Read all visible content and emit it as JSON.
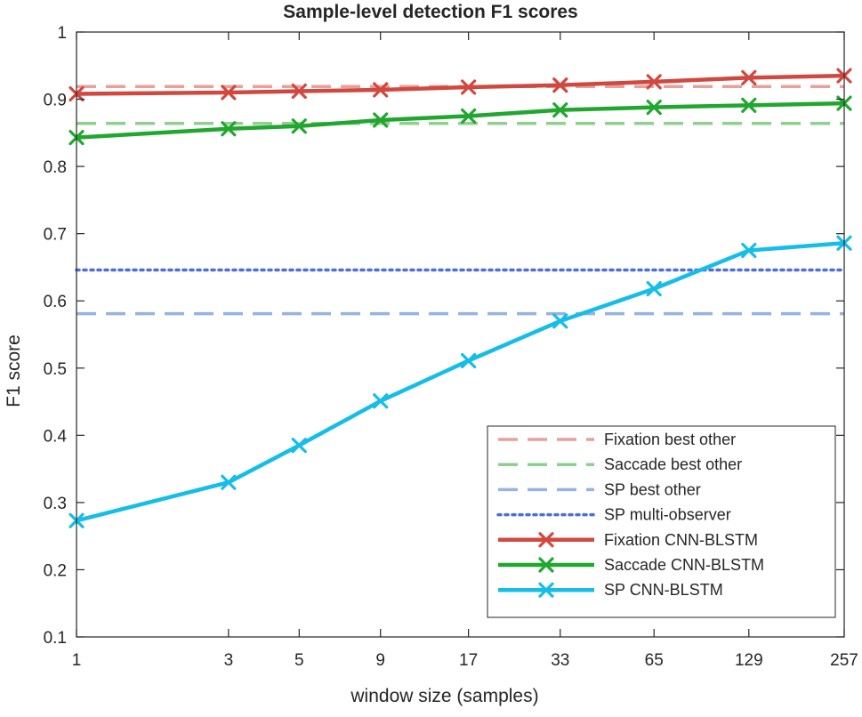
{
  "chart_data": {
    "type": "line",
    "title": "Sample-level detection F1 scores",
    "xlabel": "window size (samples)",
    "ylabel": "F1 score",
    "x_scale": "log2",
    "x_ticks": [
      1,
      3,
      5,
      9,
      17,
      33,
      65,
      129,
      257
    ],
    "x": [
      1,
      3,
      5,
      9,
      17,
      33,
      65,
      129,
      257
    ],
    "xlim": [
      1,
      257
    ],
    "ylim": [
      0.1,
      1
    ],
    "y_ticks": [
      0.1,
      0.2,
      0.3,
      0.4,
      0.5,
      0.6,
      0.7,
      0.8,
      0.9,
      1
    ],
    "y_tick_labels": [
      "0.1",
      "0.2",
      "0.3",
      "0.4",
      "0.5",
      "0.6",
      "0.7",
      "0.8",
      "0.9",
      "1"
    ],
    "grid": false,
    "legend_position": "bottom-right",
    "reference_lines": [
      {
        "name": "Fixation best other",
        "value": 0.919,
        "style": "dashed",
        "color": "#e8a09a"
      },
      {
        "name": "Saccade best other",
        "value": 0.864,
        "style": "dashed",
        "color": "#8fd08f"
      },
      {
        "name": "SP best other",
        "value": 0.581,
        "style": "dashed",
        "color": "#96b3e2"
      },
      {
        "name": "SP multi-observer",
        "value": 0.646,
        "style": "dotted",
        "color": "#4f6fd6"
      }
    ],
    "series": [
      {
        "name": "Fixation CNN-BLSTM",
        "color": "#d1483f",
        "marker": "x",
        "values": [
          0.908,
          0.91,
          0.912,
          0.914,
          0.918,
          0.921,
          0.926,
          0.932,
          0.935
        ]
      },
      {
        "name": "Saccade CNN-BLSTM",
        "color": "#21a72f",
        "marker": "x",
        "values": [
          0.843,
          0.856,
          0.86,
          0.869,
          0.875,
          0.884,
          0.888,
          0.891,
          0.894
        ]
      },
      {
        "name": "SP CNN-BLSTM",
        "color": "#15bde8",
        "marker": "x",
        "values": [
          0.273,
          0.33,
          0.385,
          0.451,
          0.511,
          0.57,
          0.618,
          0.675,
          0.686
        ]
      }
    ]
  }
}
